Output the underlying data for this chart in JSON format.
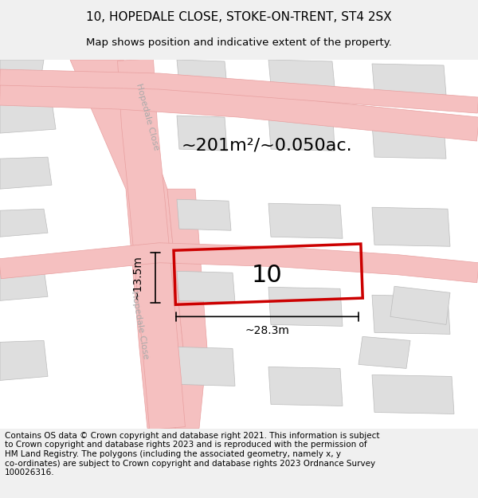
{
  "title_line1": "10, HOPEDALE CLOSE, STOKE-ON-TRENT, ST4 2SX",
  "title_line2": "Map shows position and indicative extent of the property.",
  "area_label": "~201m²/~0.050ac.",
  "plot_number": "10",
  "width_label": "~28.3m",
  "height_label": "~13.5m",
  "footer_text": "Contains OS data © Crown copyright and database right 2021. This information is subject to Crown copyright and database rights 2023 and is reproduced with the permission of HM Land Registry. The polygons (including the associated geometry, namely x, y co-ordinates) are subject to Crown copyright and database rights 2023 Ordnance Survey 100026316.",
  "bg_color": "#f5f0f0",
  "map_bg": "#ffffff",
  "road_color": "#f5c0c0",
  "road_edge_color": "#e8a0a0",
  "building_fill": "#e0dede",
  "building_edge": "#cccccc",
  "plot_color": "#cc0000",
  "text_color": "#111111",
  "road_label_color": "#aaaaaa",
  "title_fontsize": 11,
  "subtitle_fontsize": 9.5,
  "footer_fontsize": 7.5,
  "area_fontsize": 16,
  "plot_num_fontsize": 22,
  "dim_fontsize": 10
}
